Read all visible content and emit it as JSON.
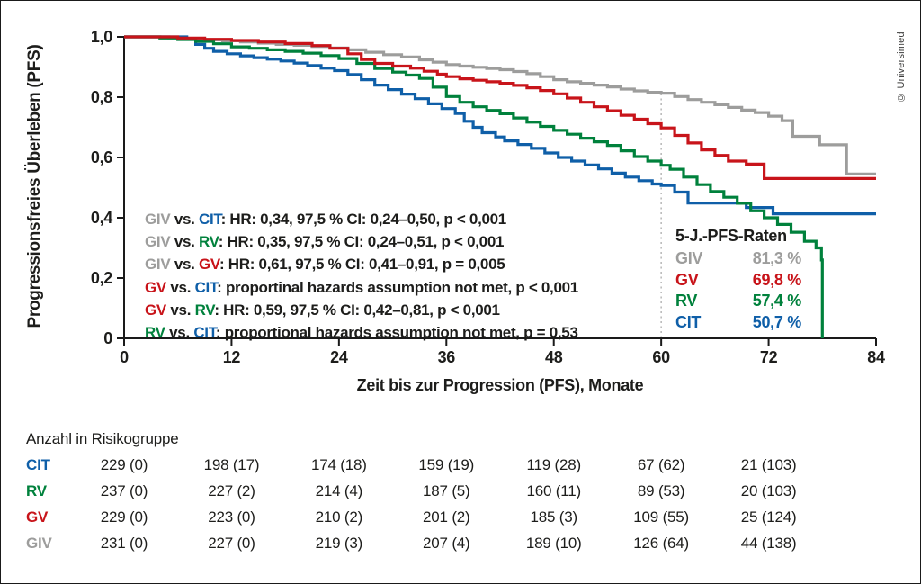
{
  "copyright": "© Universimed",
  "colors": {
    "GIV": "#9d9d9c",
    "GV": "#c8141a",
    "RV": "#00813c",
    "CIT": "#0f5fa8",
    "text": "#1d1d1b",
    "dashed_line": "#b1b1b1",
    "axis": "#1a1a1a"
  },
  "chart_data": {
    "type": "line",
    "subtype": "kaplan-meier-step",
    "title": "",
    "xlabel": "Zeit bis zur Progression (PFS), Monate",
    "ylabel": "Progressionsfreies Überleben (PFS)",
    "xlim": [
      0,
      84
    ],
    "ylim": [
      0,
      1.0
    ],
    "xticks": [
      0,
      12,
      24,
      36,
      48,
      60,
      72,
      84
    ],
    "ytick_values": [
      1.0,
      0.8,
      0.6,
      0.4,
      0.2,
      0
    ],
    "ytick_labels": [
      "1,0",
      "0,8",
      "0,6",
      "0,4",
      "0,2",
      "0"
    ],
    "grid": false,
    "vline_x": 60,
    "vline_style": "dashed",
    "series": [
      {
        "name": "GIV",
        "color": "#9d9d9c",
        "five_year_rate": "81,3 %",
        "points": [
          [
            0,
            1
          ],
          [
            5,
            0.997
          ],
          [
            7,
            0.993
          ],
          [
            9,
            0.99
          ],
          [
            11,
            0.987
          ],
          [
            13,
            0.983
          ],
          [
            15,
            0.979
          ],
          [
            17,
            0.975
          ],
          [
            19,
            0.972
          ],
          [
            21,
            0.968
          ],
          [
            23,
            0.963
          ],
          [
            25,
            0.957
          ],
          [
            27,
            0.949
          ],
          [
            29,
            0.941
          ],
          [
            31,
            0.933
          ],
          [
            33,
            0.924
          ],
          [
            34.5,
            0.916
          ],
          [
            36,
            0.908
          ],
          [
            37.5,
            0.903
          ],
          [
            39,
            0.899
          ],
          [
            40.5,
            0.895
          ],
          [
            42,
            0.891
          ],
          [
            43.5,
            0.885
          ],
          [
            45,
            0.878
          ],
          [
            46.5,
            0.868
          ],
          [
            48,
            0.858
          ],
          [
            49.5,
            0.851
          ],
          [
            51,
            0.846
          ],
          [
            52.5,
            0.84
          ],
          [
            54,
            0.834
          ],
          [
            55.5,
            0.827
          ],
          [
            57,
            0.821
          ],
          [
            58.5,
            0.816
          ],
          [
            60,
            0.813
          ],
          [
            61.5,
            0.802
          ],
          [
            63,
            0.792
          ],
          [
            64.5,
            0.783
          ],
          [
            66,
            0.775
          ],
          [
            67.5,
            0.766
          ],
          [
            69,
            0.757
          ],
          [
            70.5,
            0.749
          ],
          [
            72,
            0.737
          ],
          [
            73.5,
            0.722
          ],
          [
            74.7,
            0.67
          ],
          [
            77.7,
            0.642
          ],
          [
            80.7,
            0.545
          ],
          [
            84,
            0.545
          ]
        ]
      },
      {
        "name": "GV",
        "color": "#c8141a",
        "five_year_rate": "69,8 %",
        "points": [
          [
            0,
            1
          ],
          [
            6,
            0.996
          ],
          [
            9,
            0.992
          ],
          [
            12,
            0.988
          ],
          [
            15,
            0.983
          ],
          [
            18,
            0.978
          ],
          [
            21,
            0.971
          ],
          [
            23,
            0.962
          ],
          [
            25,
            0.944
          ],
          [
            26.5,
            0.925
          ],
          [
            28,
            0.912
          ],
          [
            30,
            0.903
          ],
          [
            32,
            0.896
          ],
          [
            33.5,
            0.886
          ],
          [
            35,
            0.876
          ],
          [
            36,
            0.868
          ],
          [
            37.5,
            0.861
          ],
          [
            39,
            0.856
          ],
          [
            40.5,
            0.851
          ],
          [
            42,
            0.846
          ],
          [
            43.5,
            0.839
          ],
          [
            45,
            0.831
          ],
          [
            46.5,
            0.822
          ],
          [
            48,
            0.811
          ],
          [
            49.5,
            0.797
          ],
          [
            51,
            0.783
          ],
          [
            52.5,
            0.768
          ],
          [
            54,
            0.755
          ],
          [
            55.5,
            0.74
          ],
          [
            57,
            0.727
          ],
          [
            58.5,
            0.712
          ],
          [
            60,
            0.698
          ],
          [
            61.5,
            0.673
          ],
          [
            63,
            0.648
          ],
          [
            64.5,
            0.625
          ],
          [
            66,
            0.607
          ],
          [
            67.5,
            0.588
          ],
          [
            69.5,
            0.578
          ],
          [
            71.5,
            0.53
          ],
          [
            84,
            0.53
          ]
        ]
      },
      {
        "name": "RV",
        "color": "#00813c",
        "five_year_rate": "57,4 %",
        "points": [
          [
            0,
            1
          ],
          [
            4,
            0.996
          ],
          [
            6,
            0.991
          ],
          [
            8,
            0.985
          ],
          [
            10,
            0.977
          ],
          [
            12,
            0.967
          ],
          [
            14,
            0.962
          ],
          [
            16,
            0.957
          ],
          [
            18,
            0.952
          ],
          [
            20,
            0.946
          ],
          [
            22,
            0.938
          ],
          [
            24,
            0.928
          ],
          [
            26,
            0.912
          ],
          [
            28,
            0.895
          ],
          [
            30,
            0.883
          ],
          [
            31.5,
            0.873
          ],
          [
            33,
            0.862
          ],
          [
            34.5,
            0.833
          ],
          [
            36,
            0.802
          ],
          [
            37.5,
            0.783
          ],
          [
            39,
            0.768
          ],
          [
            40.5,
            0.756
          ],
          [
            42,
            0.745
          ],
          [
            43.5,
            0.731
          ],
          [
            45,
            0.717
          ],
          [
            46.5,
            0.703
          ],
          [
            48,
            0.69
          ],
          [
            49.5,
            0.677
          ],
          [
            51,
            0.664
          ],
          [
            52.5,
            0.652
          ],
          [
            54,
            0.64
          ],
          [
            55.5,
            0.622
          ],
          [
            57,
            0.603
          ],
          [
            58.5,
            0.588
          ],
          [
            60,
            0.574
          ],
          [
            61,
            0.561
          ],
          [
            62.5,
            0.535
          ],
          [
            64,
            0.51
          ],
          [
            65.5,
            0.487
          ],
          [
            67,
            0.468
          ],
          [
            68.5,
            0.448
          ],
          [
            70,
            0.423
          ],
          [
            71.5,
            0.4
          ],
          [
            73,
            0.378
          ],
          [
            74.5,
            0.352
          ],
          [
            76,
            0.322
          ],
          [
            77.3,
            0.3
          ],
          [
            77.9,
            0.26
          ],
          [
            78,
            0
          ]
        ]
      },
      {
        "name": "CIT",
        "color": "#0f5fa8",
        "five_year_rate": "50,7 %",
        "points": [
          [
            0,
            1
          ],
          [
            7,
            0.992
          ],
          [
            8,
            0.975
          ],
          [
            9,
            0.962
          ],
          [
            10,
            0.952
          ],
          [
            11.5,
            0.944
          ],
          [
            13,
            0.937
          ],
          [
            14.5,
            0.931
          ],
          [
            16,
            0.926
          ],
          [
            17.5,
            0.92
          ],
          [
            19,
            0.913
          ],
          [
            20.5,
            0.905
          ],
          [
            22,
            0.896
          ],
          [
            23.5,
            0.888
          ],
          [
            25,
            0.875
          ],
          [
            26.5,
            0.858
          ],
          [
            28,
            0.84
          ],
          [
            29.5,
            0.825
          ],
          [
            31,
            0.81
          ],
          [
            32.5,
            0.795
          ],
          [
            34,
            0.778
          ],
          [
            35.5,
            0.762
          ],
          [
            37,
            0.746
          ],
          [
            38,
            0.72
          ],
          [
            39,
            0.7
          ],
          [
            40,
            0.682
          ],
          [
            41.5,
            0.668
          ],
          [
            42.5,
            0.655
          ],
          [
            44,
            0.643
          ],
          [
            45.5,
            0.63
          ],
          [
            47,
            0.615
          ],
          [
            48.5,
            0.6
          ],
          [
            50,
            0.588
          ],
          [
            51.5,
            0.575
          ],
          [
            53,
            0.562
          ],
          [
            54.5,
            0.548
          ],
          [
            56,
            0.535
          ],
          [
            57.5,
            0.523
          ],
          [
            59,
            0.512
          ],
          [
            60,
            0.507
          ],
          [
            61.5,
            0.485
          ],
          [
            63,
            0.449
          ],
          [
            69.5,
            0.434
          ],
          [
            72.5,
            0.413
          ],
          [
            84,
            0.413
          ]
        ]
      }
    ]
  },
  "stats": {
    "lines": [
      {
        "parts": [
          [
            "GIV",
            "GIV"
          ],
          [
            " vs. ",
            ""
          ],
          [
            "CIT",
            "CIT"
          ],
          [
            ": HR: 0,34, 97,5 % CI: 0,24–0,50, p < 0,001",
            ""
          ]
        ]
      },
      {
        "parts": [
          [
            "GIV",
            "GIV"
          ],
          [
            " vs. ",
            ""
          ],
          [
            "RV",
            "RV"
          ],
          [
            ": HR: 0,35, 97,5 % CI: 0,24–0,51, p < 0,001",
            ""
          ]
        ]
      },
      {
        "parts": [
          [
            "GIV",
            "GIV"
          ],
          [
            " vs. ",
            ""
          ],
          [
            "GV",
            "GV"
          ],
          [
            ": HR: 0,61, 97,5 % CI: 0,41–0,91, p = 0,005",
            ""
          ]
        ]
      },
      {
        "parts": [
          [
            "GV",
            "GV"
          ],
          [
            " vs. ",
            ""
          ],
          [
            "CIT",
            "CIT"
          ],
          [
            ": proportinal hazards assumption not met, p < 0,001",
            ""
          ]
        ]
      },
      {
        "parts": [
          [
            "GV",
            "GV"
          ],
          [
            " vs. ",
            ""
          ],
          [
            "RV",
            "RV"
          ],
          [
            ": HR: 0,59, 97,5 % CI: 0,42–0,81, p < 0,001",
            ""
          ]
        ]
      },
      {
        "parts": [
          [
            "RV",
            "RV"
          ],
          [
            " vs. ",
            ""
          ],
          [
            "CIT",
            "CIT"
          ],
          [
            ": proportional hazards assumption not met, p = 0,53",
            ""
          ]
        ]
      }
    ]
  },
  "rates_box": {
    "title": "5-J.-PFS-Raten",
    "rows": [
      {
        "label": "GIV",
        "value": "81,3 %"
      },
      {
        "label": "GV",
        "value": "69,8 %"
      },
      {
        "label": "RV",
        "value": "57,4 %"
      },
      {
        "label": "CIT",
        "value": "50,7 %"
      }
    ]
  },
  "risk_table": {
    "title": "Anzahl in Risikogruppe",
    "time_points": [
      0,
      12,
      24,
      36,
      48,
      60,
      72
    ],
    "rows": [
      {
        "label": "CIT",
        "values": [
          "229 (0)",
          "198 (17)",
          "174 (18)",
          "159 (19)",
          "119 (28)",
          "67 (62)",
          "21 (103)"
        ]
      },
      {
        "label": "RV",
        "values": [
          "237 (0)",
          "227 (2)",
          "214 (4)",
          "187 (5)",
          "160 (11)",
          "89 (53)",
          "20 (103)"
        ]
      },
      {
        "label": "GV",
        "values": [
          "229 (0)",
          "223 (0)",
          "210 (2)",
          "201 (2)",
          "185 (3)",
          "109 (55)",
          "25 (124)"
        ]
      },
      {
        "label": "GIV",
        "values": [
          "231 (0)",
          "227 (0)",
          "219 (3)",
          "207 (4)",
          "189 (10)",
          "126 (64)",
          "44 (138)"
        ]
      }
    ]
  }
}
